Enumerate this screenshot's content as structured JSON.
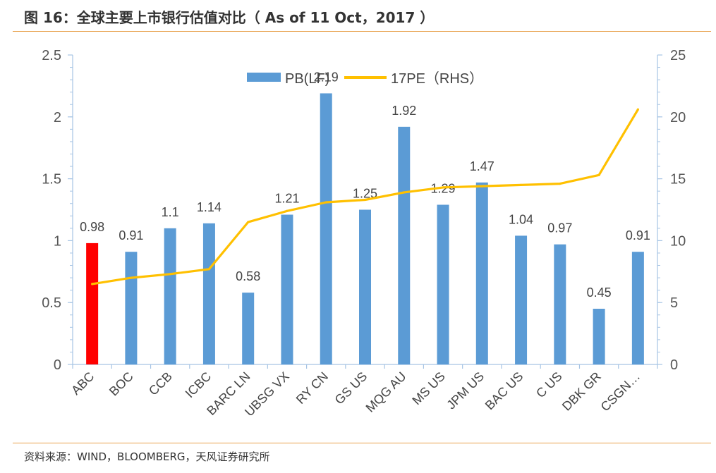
{
  "title": "图 16：全球主要上市银行估值对比（ As of 11 Oct，2017 ）",
  "source": "资料来源：WIND，BLOOMBERG，天风证券研究所",
  "chart_data": {
    "type": "bar+line",
    "categories": [
      "ABC",
      "BOC",
      "CCB",
      "ICBC",
      "BARC LN",
      "UBSG VX",
      "RY CN",
      "GS US",
      "MQG AU",
      "MS US",
      "JPM US",
      "BAC US",
      "C US",
      "DBK GR",
      "CSGN…"
    ],
    "series": [
      {
        "name": "PB(LF)",
        "type": "bar",
        "axis": "left",
        "values": [
          0.98,
          0.91,
          1.1,
          1.14,
          0.58,
          1.21,
          2.19,
          1.25,
          1.92,
          1.29,
          1.47,
          1.04,
          0.97,
          0.45,
          0.91
        ],
        "labels": [
          "0.98",
          "0.91",
          "1.1",
          "1.14",
          "0.58",
          "1.21",
          "2.19",
          "1.25",
          "1.92",
          "1.29",
          "1.47",
          "1.04",
          "0.97",
          "0.45",
          "0.91"
        ],
        "color": "#5b9bd5",
        "highlight_index": 0,
        "highlight_color": "#ff0000"
      },
      {
        "name": "17PE（RHS）",
        "type": "line",
        "axis": "right",
        "values": [
          6.5,
          7.0,
          7.3,
          7.7,
          11.5,
          12.4,
          13.1,
          13.3,
          13.9,
          14.3,
          14.4,
          14.5,
          14.6,
          15.3,
          20.6
        ],
        "color": "#ffc000"
      }
    ],
    "y_left": {
      "min": 0,
      "max": 2.5,
      "ticks": [
        "0",
        "0.5",
        "1",
        "1.5",
        "2",
        "2.5"
      ]
    },
    "y_right": {
      "min": 0,
      "max": 25,
      "ticks": [
        "0",
        "5",
        "10",
        "15",
        "20",
        "25"
      ]
    },
    "grid": false,
    "legend": "top-center"
  }
}
